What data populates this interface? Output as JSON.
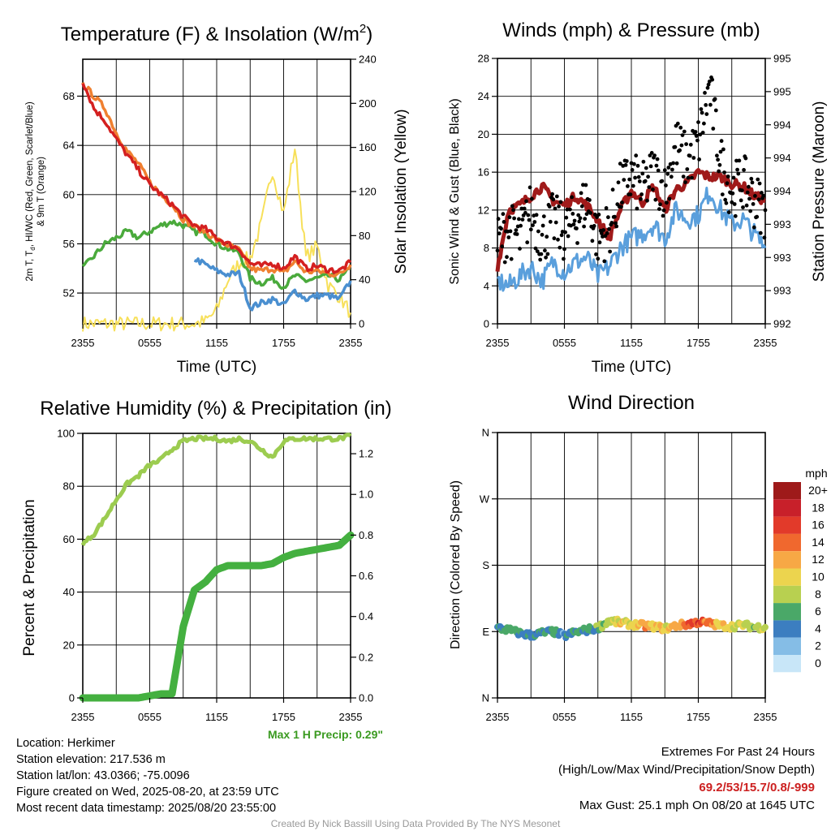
{
  "panels": {
    "temp": {
      "title_main": "Temperature (F) & Insolation (W/m",
      "title_sup": "2",
      "title_close": ")",
      "ylabel_line1": "2m T, T",
      "ylabel_sub": "d",
      "ylabel_line1_rest": ", HI/WC (Red, Green, Scarlet/Blue)",
      "ylabel_line2": "& 9m T (Orange)",
      "y2label": "Solar Insolation (Yellow)",
      "xlabel": "Time (UTC)"
    },
    "wind": {
      "title": "Winds (mph) & Pressure (mb)",
      "ylabel": "Sonic Wind & Gust (Blue, Black)",
      "y2label": "Station Pressure (Maroon)",
      "xlabel": "Time (UTC)"
    },
    "rh": {
      "title": "Relative Humidity (%) & Precipitation (in)",
      "ylabel": "Percent & Precipitation",
      "max_precip": "Max 1 H Precip: 0.29\""
    },
    "dir": {
      "title": "Wind Direction",
      "ylabel": "Direction (Colored By Speed)",
      "legend_title": "mph"
    }
  },
  "station": {
    "location": "Location: Herkimer",
    "elevation": "Station elevation: 217.536 m",
    "latlon": "Station lat/lon: 43.0366; -75.0096",
    "created": "Figure created on Wed, 2025-08-20, at 23:59 UTC",
    "recent": "Most recent data timestamp: 2025/08/20 23:55:00"
  },
  "extremes": {
    "title": "Extremes For Past 24 Hours",
    "subtitle": "(High/Low/Max Wind/Precipitation/Snow Depth)",
    "values": "69.2/53/15.7/0.8/-999",
    "gust": "Max Gust: 25.1 mph On 08/20 at 1645 UTC"
  },
  "credit": "Created By Nick Bassill Using Data Provided By The NYS Mesonet",
  "colors": {
    "temp_red": "#d42020",
    "temp_orange": "#f08030",
    "temp_green": "#4aaa3c",
    "temp_blue": "#4a8fd0",
    "insolation_yellow": "#f7e05a",
    "wind_blue": "#5a9fdc",
    "gust_black": "#000000",
    "pressure_maroon": "#a01a1a",
    "rh_lightgreen": "#9ccc50",
    "precip_green": "#44b040",
    "max_precip_text": "#3a9a20",
    "extremes_red": "#cc2020"
  },
  "chart_data": [
    {
      "type": "line",
      "title": "Temperature (F) & Insolation (W/m2)",
      "xlabel": "Time (UTC)",
      "x_ticks": [
        "2355",
        "0555",
        "1155",
        "1755",
        "2355"
      ],
      "y_ticks": [
        52,
        56,
        60,
        64,
        68
      ],
      "ylim": [
        49.5,
        71
      ],
      "y2_ticks": [
        0,
        40,
        80,
        120,
        160,
        200,
        240
      ],
      "y2lim": [
        0,
        240
      ],
      "x_hours": [
        0,
        1,
        2,
        3,
        4,
        5,
        6,
        7,
        8,
        9,
        10,
        11,
        12,
        13,
        14,
        15,
        16,
        17,
        18,
        19,
        20,
        21,
        22,
        23,
        24
      ],
      "series": [
        {
          "name": "2m T (Red)",
          "axis": "left",
          "color": "#d42020",
          "values": [
            69.2,
            67.0,
            66.0,
            64.5,
            63.2,
            62.0,
            60.8,
            60.0,
            59.2,
            58.2,
            57.5,
            57.2,
            56.5,
            56.0,
            55.6,
            54.4,
            54.2,
            54.4,
            54.0,
            55.0,
            54.0,
            54.2,
            53.9,
            53.8,
            54.5
          ]
        },
        {
          "name": "9m T (Orange)",
          "axis": "left",
          "color": "#f08030",
          "values": [
            69.0,
            68.0,
            67.0,
            65.0,
            63.5,
            62.5,
            61.0,
            60.0,
            59.2,
            58.0,
            57.4,
            57.0,
            56.3,
            55.9,
            55.5,
            54.0,
            53.8,
            54.0,
            53.6,
            54.6,
            53.7,
            53.8,
            53.6,
            53.5,
            54.3
          ]
        },
        {
          "name": "Td (Green)",
          "axis": "left",
          "color": "#4aaa3c",
          "values": [
            54.0,
            55.0,
            56.0,
            56.5,
            57.0,
            56.5,
            57.0,
            57.5,
            57.8,
            57.5,
            57.0,
            56.8,
            56.0,
            55.6,
            55.3,
            53.2,
            52.8,
            53.2,
            52.5,
            53.4,
            53.0,
            53.2,
            53.4,
            53.1,
            54.0
          ]
        },
        {
          "name": "HI/WC (Blue)",
          "axis": "left",
          "color": "#4a8fd0",
          "values": [
            null,
            null,
            null,
            null,
            null,
            null,
            null,
            null,
            null,
            null,
            54.8,
            54.3,
            53.8,
            53.5,
            53.6,
            50.8,
            51.2,
            51.5,
            51.0,
            52.2,
            51.5,
            51.8,
            51.8,
            51.5,
            53.0
          ]
        },
        {
          "name": "Solar Insolation (Yellow)",
          "axis": "right",
          "color": "#f7e05a",
          "values": [
            0,
            0,
            0,
            0,
            0,
            0,
            0,
            0,
            0,
            0,
            0,
            2,
            12,
            40,
            55,
            60,
            90,
            140,
            100,
            160,
            60,
            70,
            35,
            25,
            10
          ]
        }
      ]
    },
    {
      "type": "line",
      "title": "Winds (mph) & Pressure (mb)",
      "xlabel": "Time (UTC)",
      "x_ticks": [
        "2355",
        "0555",
        "1155",
        "1755",
        "2355"
      ],
      "y_ticks": [
        0,
        4,
        8,
        12,
        16,
        20,
        24,
        28
      ],
      "ylim": [
        0,
        28
      ],
      "y2_tick_labels": [
        "992",
        "993",
        "993",
        "993",
        "994",
        "994",
        "994",
        "995",
        "995"
      ],
      "x_hours": [
        0,
        1,
        2,
        3,
        4,
        5,
        6,
        7,
        8,
        9,
        10,
        11,
        12,
        13,
        14,
        15,
        16,
        17,
        18,
        19,
        20,
        21,
        22,
        23,
        24
      ],
      "series": [
        {
          "name": "Sonic Wind (Blue)",
          "axis": "left",
          "color": "#5a9fdc",
          "values": [
            4.5,
            4.0,
            5.0,
            6.0,
            4.5,
            6.5,
            5.5,
            6.5,
            7.0,
            5.0,
            6.0,
            8.0,
            9.0,
            9.5,
            10.5,
            9.0,
            12.0,
            11.0,
            11.5,
            14.0,
            12.0,
            10.5,
            11.0,
            9.5,
            8.0
          ]
        },
        {
          "name": "Gust (Black)",
          "axis": "left",
          "color": "#000000",
          "values": [
            8.5,
            10.0,
            9.0,
            12.0,
            9.0,
            11.0,
            9.5,
            11.0,
            13.0,
            9.0,
            10.0,
            14.0,
            15.5,
            14.0,
            16.0,
            14.0,
            19.0,
            17.0,
            19.0,
            25.0,
            17.0,
            14.0,
            15.0,
            13.0,
            12.0
          ]
        },
        {
          "name": "Station Pressure (Maroon)",
          "axis": "left",
          "color": "#a01a1a",
          "values": [
            6,
            12,
            12.5,
            13.5,
            14.5,
            13,
            12.5,
            13.5,
            12.5,
            11,
            9,
            12,
            14,
            12.8,
            14.5,
            12,
            14.2,
            14.8,
            16.0,
            15.5,
            15.5,
            14.8,
            14.5,
            13.5,
            13.0
          ]
        }
      ]
    },
    {
      "type": "line",
      "title": "Relative Humidity (%) & Precipitation (in)",
      "x_ticks": [
        "2355",
        "0555",
        "1155",
        "1755",
        "2355"
      ],
      "y_ticks": [
        0,
        20,
        40,
        60,
        80,
        100
      ],
      "ylim": [
        0,
        100
      ],
      "y2_ticks": [
        0.0,
        0.2,
        0.4,
        0.6,
        0.8,
        1.0,
        1.2
      ],
      "y2lim": [
        0,
        1.3
      ],
      "x_hours": [
        0,
        1,
        2,
        3,
        4,
        5,
        6,
        7,
        8,
        9,
        10,
        11,
        12,
        13,
        14,
        15,
        16,
        17,
        18,
        19,
        20,
        21,
        22,
        23,
        24
      ],
      "series": [
        {
          "name": "Relative Humidity",
          "axis": "left",
          "color": "#9ccc50",
          "values": [
            58,
            62,
            68,
            75,
            81,
            84,
            88,
            90,
            94,
            97,
            98,
            98,
            98,
            97,
            98,
            97,
            94,
            91,
            97,
            98,
            98,
            98,
            98,
            98,
            99
          ]
        },
        {
          "name": "Precipitation",
          "axis": "right",
          "color": "#44b040",
          "values": [
            0,
            0,
            0,
            0,
            0,
            0,
            0.01,
            0.02,
            0.02,
            0.35,
            0.53,
            0.57,
            0.63,
            0.65,
            0.65,
            0.65,
            0.65,
            0.66,
            0.69,
            0.71,
            0.72,
            0.73,
            0.74,
            0.75,
            0.8
          ]
        }
      ]
    },
    {
      "type": "scatter",
      "title": "Wind Direction",
      "ylabel": "Direction (Colored By Speed)",
      "x_ticks": [
        "2355",
        "0555",
        "1155",
        "1755",
        "2355"
      ],
      "y_ticks": [
        "N",
        "E",
        "S",
        "W",
        "N"
      ],
      "ylim_deg": [
        0,
        360
      ],
      "x_hours": [
        0,
        1,
        2,
        3,
        4,
        5,
        6,
        7,
        8,
        9,
        10,
        11,
        12,
        13,
        14,
        15,
        16,
        17,
        18,
        19,
        20,
        21,
        22,
        23,
        24
      ],
      "direction_deg": [
        95,
        92,
        88,
        85,
        88,
        90,
        84,
        89,
        92,
        95,
        105,
        102,
        100,
        98,
        97,
        94,
        98,
        100,
        103,
        101,
        98,
        97,
        99,
        96,
        96
      ],
      "speed_mph": [
        5,
        6,
        5,
        4,
        4,
        5,
        4,
        5,
        5,
        6,
        8,
        10,
        10,
        12,
        11,
        10,
        12,
        14,
        16,
        13,
        11,
        10,
        9,
        8,
        8
      ],
      "legend": {
        "title": "mph",
        "labels": [
          "20+",
          "18",
          "16",
          "14",
          "12",
          "10",
          "8",
          "6",
          "4",
          "2",
          "0"
        ],
        "colors": [
          "#9e1a1a",
          "#c8202a",
          "#e23a2a",
          "#f0682e",
          "#f7a845",
          "#ecd44e",
          "#b8d050",
          "#4aa868",
          "#3c7ec0",
          "#85bde6",
          "#c8e6f8"
        ]
      }
    }
  ]
}
